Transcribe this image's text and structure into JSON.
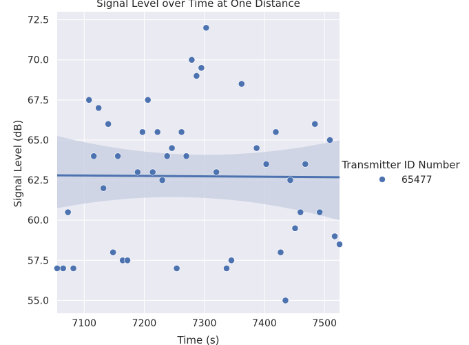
{
  "chart_data": {
    "type": "scatter",
    "title": "Signal Level over Time at One Distance",
    "xlabel": "Time (s)",
    "ylabel": "Signal Level (dB)",
    "xlim": [
      7055,
      7525
    ],
    "ylim": [
      54.2,
      73.0
    ],
    "xticks": [
      7100,
      7200,
      7300,
      7400,
      7500
    ],
    "yticks": [
      55.0,
      57.5,
      60.0,
      62.5,
      65.0,
      67.5,
      70.0,
      72.5
    ],
    "grid": true,
    "legend": {
      "title": "Transmitter ID Number",
      "placement": "right"
    },
    "colors": {
      "background": "#eaeaf2",
      "grid": "#ffffff",
      "point": "#4c72b0",
      "band": "#c5cde0",
      "text": "#262626"
    },
    "regression": {
      "start": [
        7055,
        62.8
      ],
      "end": [
        7525,
        62.68
      ],
      "ci_lower": [
        60.75,
        60.0
      ],
      "ci_upper": [
        65.25,
        65.0
      ]
    },
    "series": [
      {
        "name": "65477",
        "points": [
          [
            7055,
            57.0
          ],
          [
            7065,
            57.0
          ],
          [
            7073,
            60.5
          ],
          [
            7082,
            57.0
          ],
          [
            7108,
            67.5
          ],
          [
            7116,
            64.0
          ],
          [
            7124,
            67.0
          ],
          [
            7132,
            62.0
          ],
          [
            7140,
            66.0
          ],
          [
            7148,
            58.0
          ],
          [
            7156,
            64.0
          ],
          [
            7164,
            57.5
          ],
          [
            7172,
            57.5
          ],
          [
            7189,
            63.0
          ],
          [
            7197,
            65.5
          ],
          [
            7206,
            67.5
          ],
          [
            7214,
            63.0
          ],
          [
            7222,
            65.5
          ],
          [
            7230,
            62.5
          ],
          [
            7238,
            64.0
          ],
          [
            7246,
            64.5
          ],
          [
            7254,
            57.0
          ],
          [
            7262,
            65.5
          ],
          [
            7270,
            64.0
          ],
          [
            7279,
            70.0
          ],
          [
            7287,
            69.0
          ],
          [
            7295,
            69.5
          ],
          [
            7303,
            72.0
          ],
          [
            7320,
            63.0
          ],
          [
            7337,
            57.0
          ],
          [
            7345,
            57.5
          ],
          [
            7362,
            68.5
          ],
          [
            7387,
            64.5
          ],
          [
            7403,
            63.5
          ],
          [
            7419,
            65.5
          ],
          [
            7427,
            58.0
          ],
          [
            7435,
            55.0
          ],
          [
            7443,
            62.5
          ],
          [
            7451,
            59.5
          ],
          [
            7460,
            60.5
          ],
          [
            7468,
            63.5
          ],
          [
            7484,
            66.0
          ],
          [
            7492,
            60.5
          ],
          [
            7509,
            65.0
          ],
          [
            7517,
            59.0
          ],
          [
            7525,
            58.5
          ]
        ]
      }
    ]
  }
}
